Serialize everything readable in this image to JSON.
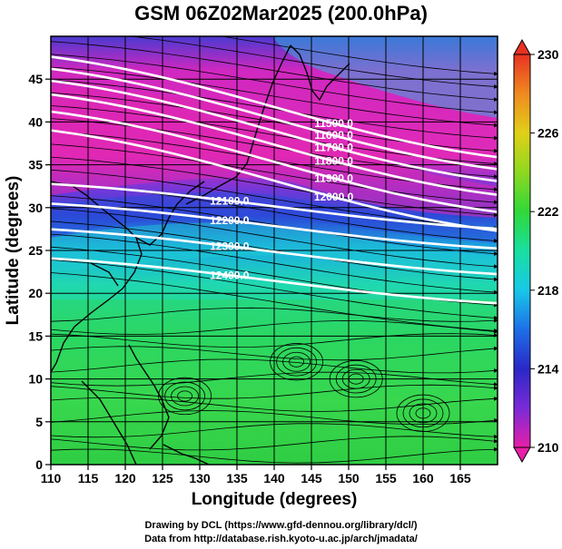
{
  "title": "GSM 06Z02Mar2025 (200.0hPa)",
  "xlabel": "Longitude (degrees)",
  "ylabel": "Latitude  (degrees)",
  "credit_line1": "Drawing by DCL (https://www.gfd-dennou.org/library/dcl/)",
  "credit_line2": "Data from http://database.rish.kyoto-u.ac.jp/arch/jmadata/",
  "chart_data": {
    "type": "heatmap",
    "title": "GSM 06Z02Mar2025 (200.0hPa)",
    "xlabel": "Longitude (degrees)",
    "ylabel": "Latitude  (degrees)",
    "xlim": [
      110,
      170
    ],
    "ylim": [
      0,
      50
    ],
    "x_ticks": [
      "110",
      "115",
      "120",
      "125",
      "130",
      "135",
      "140",
      "145",
      "150",
      "155",
      "160",
      "165"
    ],
    "y_ticks": [
      "0",
      "5",
      "10",
      "15",
      "20",
      "25",
      "30",
      "35",
      "40",
      "45"
    ],
    "colorbar": {
      "range": [
        210,
        230
      ],
      "ticks": [
        "230",
        "226",
        "222",
        "218",
        "214",
        "210"
      ],
      "colors": [
        "#e81fa8",
        "#7a2ad8",
        "#2a28c8",
        "#1e6fe8",
        "#18c8e8",
        "#18e0a0",
        "#30d838",
        "#8ed820",
        "#e0d018",
        "#f08a20",
        "#e83222"
      ]
    },
    "contours": [
      {
        "label": "11500.0",
        "lat_at_145": 41.2
      },
      {
        "label": "11600.0",
        "lat_at_145": 39.8
      },
      {
        "label": "11700.0",
        "lat_at_145": 38.4
      },
      {
        "label": "11800.0",
        "lat_at_145": 36.8
      },
      {
        "label": "11900.0",
        "lat_at_145": 34.8
      },
      {
        "label": "12000.0",
        "lat_at_145": 32.6
      },
      {
        "label": "12100.0",
        "lat_at_145": 29.9
      },
      {
        "label": "12200.0",
        "lat_at_145": 27.6
      },
      {
        "label": "12300.0",
        "lat_at_145": 24.6
      },
      {
        "label": "12400.0",
        "lat_at_145": 21.2
      }
    ]
  }
}
